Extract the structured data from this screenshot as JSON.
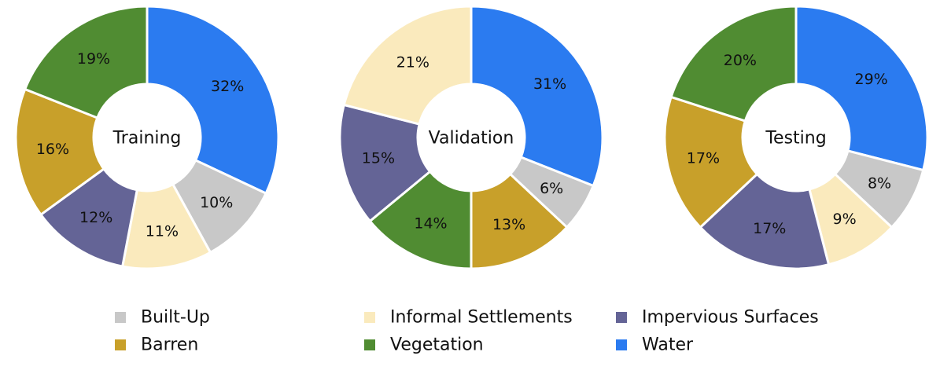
{
  "categories": [
    "Built-Up",
    "Informal Settlements",
    "Impervious Surfaces",
    "Barren",
    "Vegetation",
    "Water"
  ],
  "colors": {
    "Built-Up": "#c8c8c8",
    "Informal Settlements": "#faeabd",
    "Impervious Surfaces": "#646496",
    "Barren": "#c8a02a",
    "Vegetation": "#508c32",
    "Water": "#2b7bf0"
  },
  "chart_data": [
    {
      "type": "pie",
      "title": "Training",
      "slices": [
        {
          "label": "Water",
          "value": 32
        },
        {
          "label": "Built-Up",
          "value": 10
        },
        {
          "label": "Informal Settlements",
          "value": 11
        },
        {
          "label": "Impervious Surfaces",
          "value": 12
        },
        {
          "label": "Barren",
          "value": 16
        },
        {
          "label": "Vegetation",
          "value": 19
        }
      ]
    },
    {
      "type": "pie",
      "title": "Validation",
      "slices": [
        {
          "label": "Water",
          "value": 31
        },
        {
          "label": "Built-Up",
          "value": 6
        },
        {
          "label": "Barren",
          "value": 13
        },
        {
          "label": "Vegetation",
          "value": 14
        },
        {
          "label": "Impervious Surfaces",
          "value": 15
        },
        {
          "label": "Informal Settlements",
          "value": 21
        }
      ]
    },
    {
      "type": "pie",
      "title": "Testing",
      "slices": [
        {
          "label": "Water",
          "value": 29
        },
        {
          "label": "Built-Up",
          "value": 8
        },
        {
          "label": "Informal Settlements",
          "value": 9
        },
        {
          "label": "Impervious Surfaces",
          "value": 17
        },
        {
          "label": "Barren",
          "value": 17
        },
        {
          "label": "Vegetation",
          "value": 20
        }
      ]
    }
  ],
  "legend": {
    "items": [
      {
        "label": "Built-Up"
      },
      {
        "label": "Informal Settlements"
      },
      {
        "label": "Impervious Surfaces"
      },
      {
        "label": "Barren"
      },
      {
        "label": "Vegetation"
      },
      {
        "label": "Water"
      }
    ]
  }
}
